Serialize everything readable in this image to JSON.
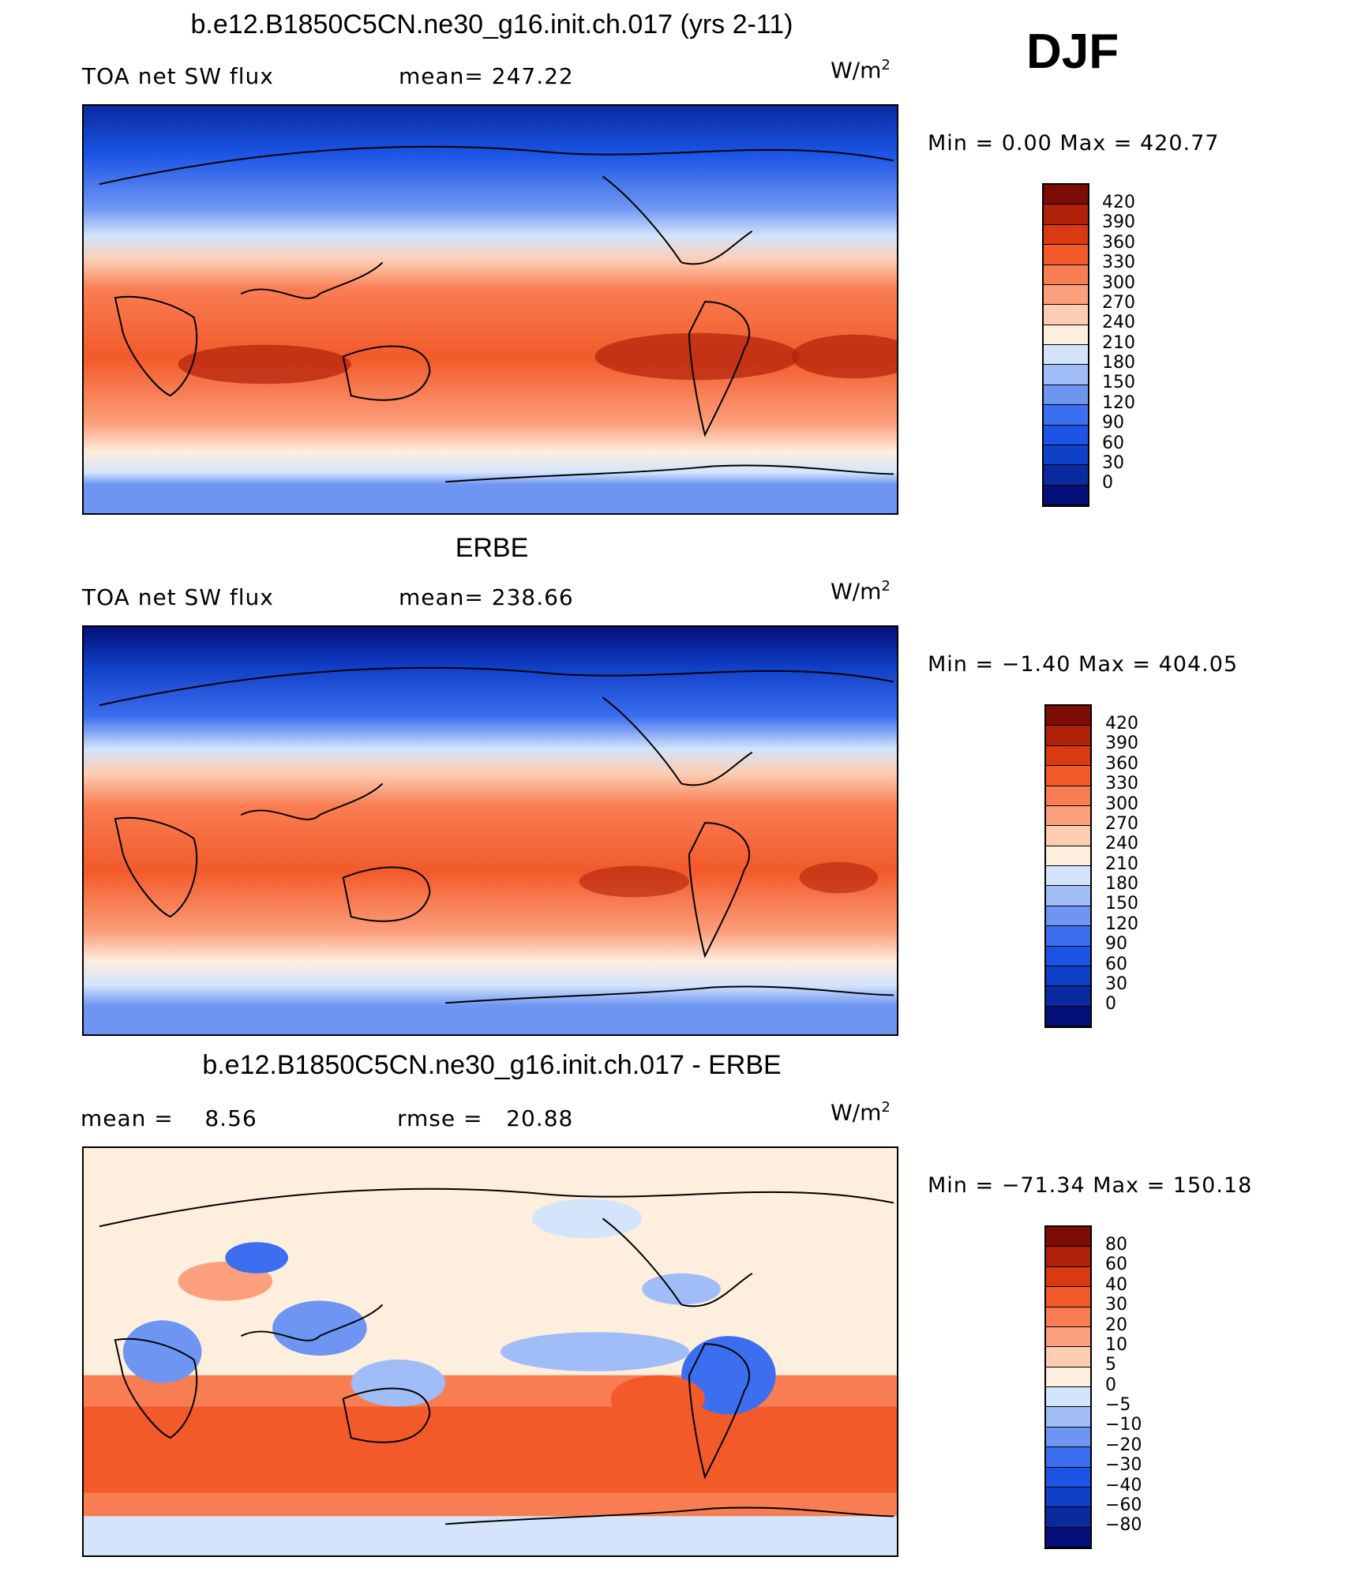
{
  "season": "DJF",
  "units_base": "W/m",
  "units_exp": "2",
  "panels": [
    {
      "title": "b.e12.B1850C5CN.ne30_g16.init.ch.017 (yrs 2-11)",
      "left_label": "TOA net SW flux",
      "stat_label": "mean= 247.22",
      "minmax": "Min =    0.00 Max = 420.77",
      "map": "TOA net SW flux, model",
      "colorbar_levels": [
        "420",
        "390",
        "360",
        "330",
        "300",
        "270",
        "240",
        "210",
        "180",
        "150",
        "120",
        "90",
        "60",
        "30",
        "0"
      ]
    },
    {
      "title": "ERBE",
      "left_label": "TOA net SW flux",
      "stat_label": "mean= 238.66",
      "minmax": "Min =  −1.40 Max = 404.05",
      "map": "TOA net SW flux, ERBE",
      "colorbar_levels": [
        "420",
        "390",
        "360",
        "330",
        "300",
        "270",
        "240",
        "210",
        "180",
        "150",
        "120",
        "90",
        "60",
        "30",
        "0"
      ]
    },
    {
      "title": "b.e12.B1850C5CN.ne30_g16.init.ch.017 - ERBE",
      "left_label": "mean =    8.56",
      "stat_label": "rmse =   20.88",
      "minmax": "Min = −71.34 Max = 150.18",
      "map": "difference",
      "colorbar_levels": [
        "80",
        "60",
        "40",
        "30",
        "20",
        "10",
        "5",
        "0",
        "−5",
        "−10",
        "−20",
        "−30",
        "−40",
        "−60",
        "−80"
      ]
    }
  ],
  "colors": {
    "scale": [
      "#050f7a",
      "#0a2aa0",
      "#1040c8",
      "#1c55e6",
      "#3c6ef0",
      "#6e95f2",
      "#a0bdf8",
      "#d3e4fb",
      "#fdeede",
      "#fdcdb3",
      "#fc9f7c",
      "#f97d52",
      "#f25a2a",
      "#da3a12",
      "#b0210a",
      "#7d0c05"
    ]
  }
}
